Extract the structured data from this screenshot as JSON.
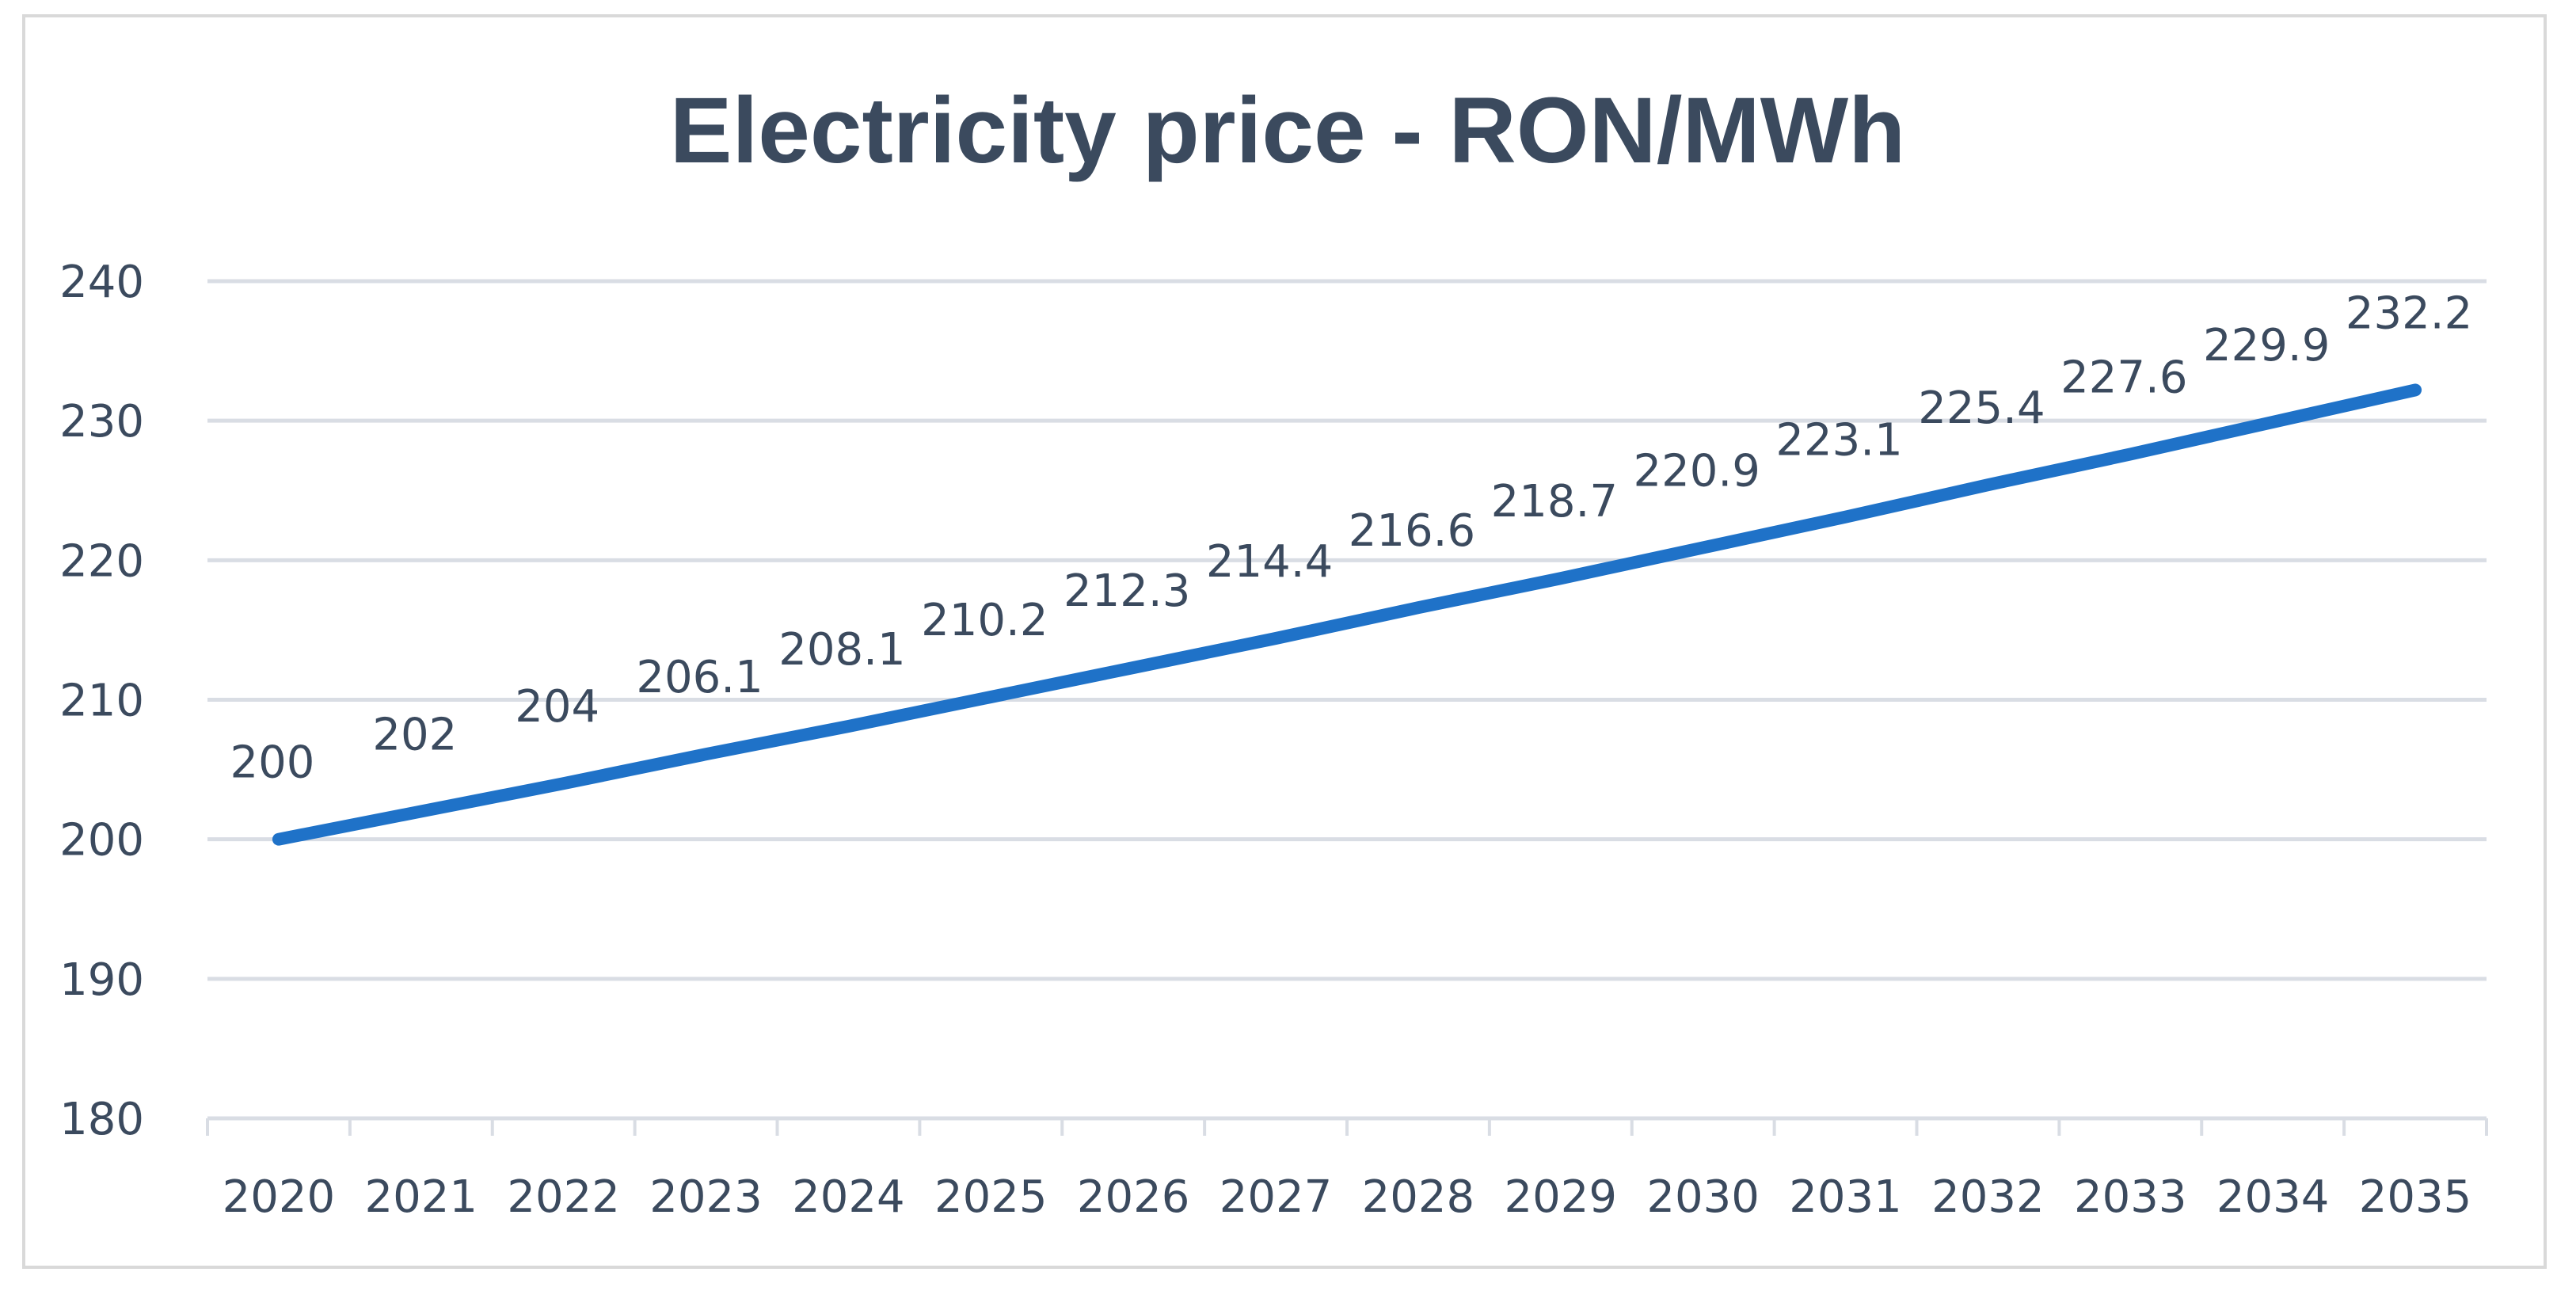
{
  "chart_data": {
    "type": "line",
    "title": "Electricity price - RON/MWh",
    "xlabel": "",
    "ylabel": "",
    "categories": [
      "2020",
      "2021",
      "2022",
      "2023",
      "2024",
      "2025",
      "2026",
      "2027",
      "2028",
      "2029",
      "2030",
      "2031",
      "2032",
      "2033",
      "2034",
      "2035"
    ],
    "series": [
      {
        "name": "Electricity price",
        "values": [
          200,
          202,
          204,
          206.1,
          208.1,
          210.2,
          212.3,
          214.4,
          216.6,
          218.7,
          220.9,
          223.1,
          225.4,
          227.6,
          229.9,
          232.2
        ],
        "data_labels": [
          "200",
          "202",
          "204",
          "206.1",
          "208.1",
          "210.2",
          "212.3",
          "214.4",
          "216.6",
          "218.7",
          "220.9",
          "223.1",
          "225.4",
          "227.6",
          "229.9",
          "232.2"
        ]
      }
    ],
    "ylim": [
      180,
      240
    ],
    "yticks": [
      180,
      190,
      200,
      210,
      220,
      230,
      240
    ],
    "ytick_labels": [
      "180",
      "190",
      "200",
      "210",
      "220",
      "230",
      "240"
    ],
    "grid": true,
    "legend": "none",
    "colors": {
      "line": "#1f72c8",
      "text": "#3b4a5e",
      "grid": "#d9dde4",
      "axis": "#d9dde4",
      "frame": "#d9d9d9"
    }
  }
}
